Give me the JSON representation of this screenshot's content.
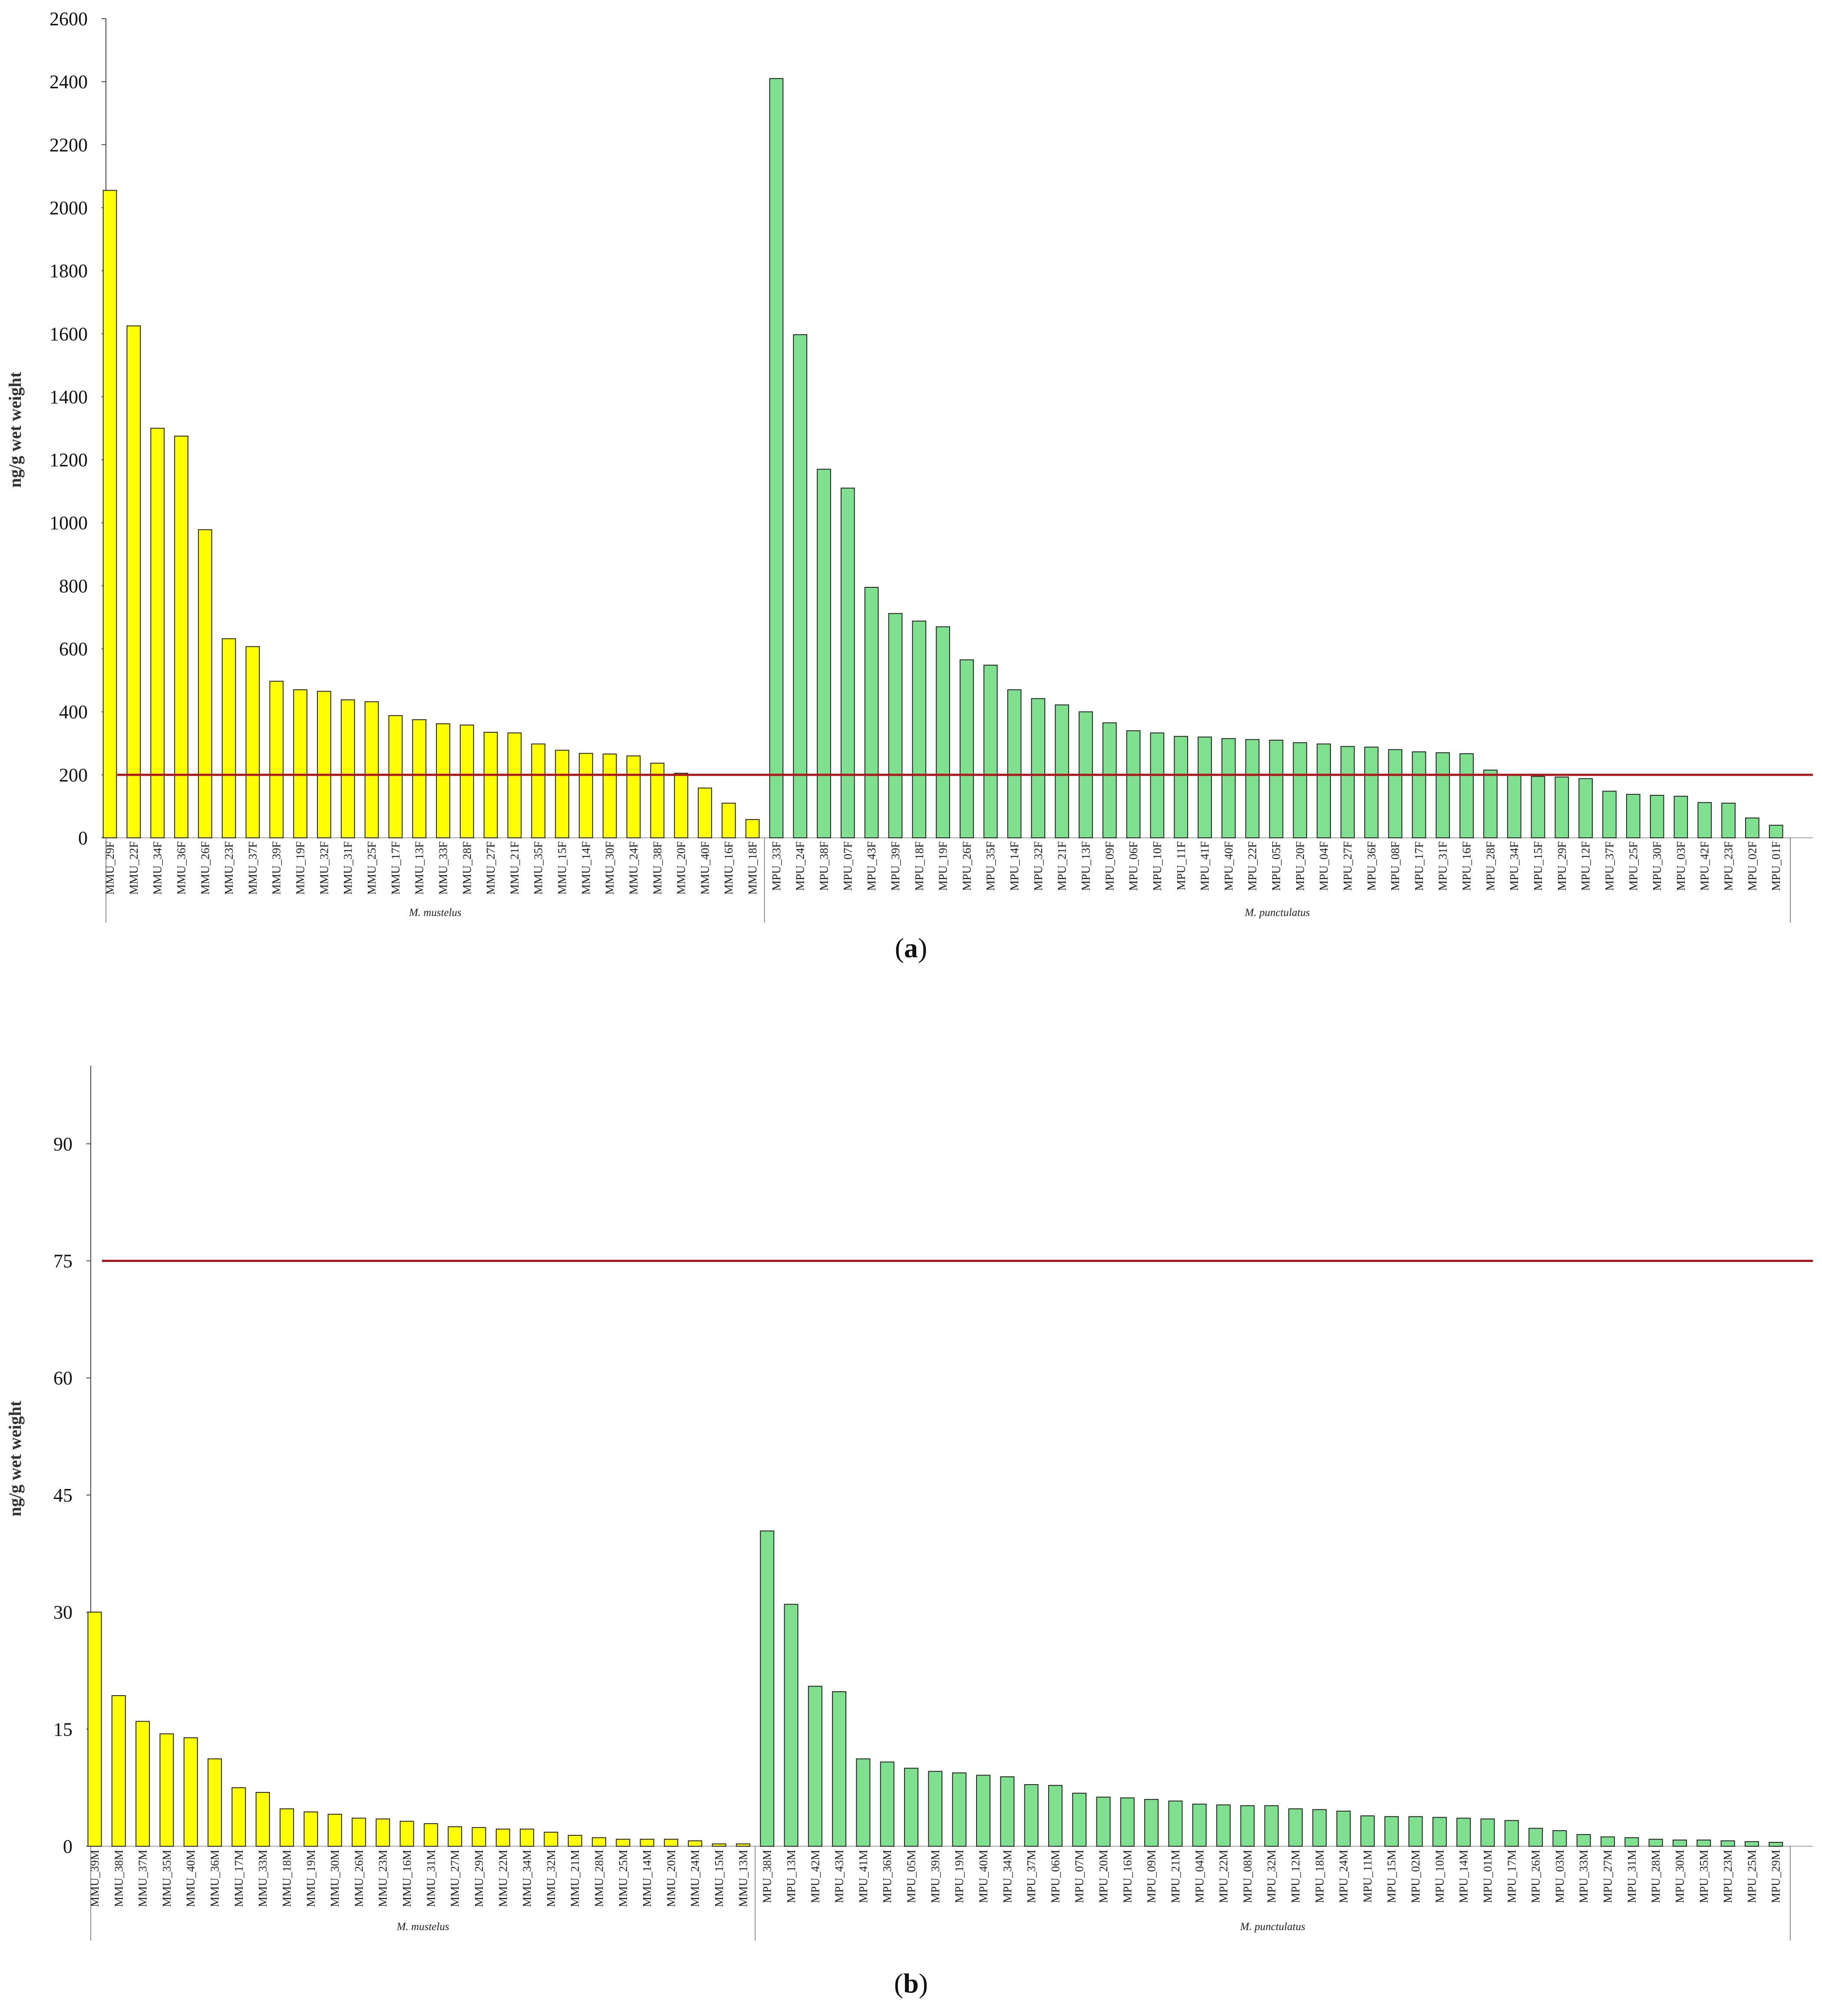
{
  "chart_data": [
    {
      "type": "bar",
      "panel_label": "(a)",
      "panel_letter": "a",
      "ylabel": "ng/g  wet weight",
      "ylim": [
        0,
        2600
      ],
      "yticks": [
        0,
        200,
        400,
        600,
        800,
        1000,
        1200,
        1400,
        1600,
        1800,
        2000,
        2200,
        2400,
        2600
      ],
      "reference_line": 200,
      "groups": [
        {
          "name": "M. mustelus",
          "color": "#ffff00",
          "categories": [
            "MMU_29F",
            "MMU_22F",
            "MMU_34F",
            "MMU_36F",
            "MMU_26F",
            "MMU_23F",
            "MMU_37F",
            "MMU_39F",
            "MMU_19F",
            "MMU_32F",
            "MMU_31F",
            "MMU_25F",
            "MMU_17F",
            "MMU_13F",
            "MMU_33F",
            "MMU_28F",
            "MMU_27F",
            "MMU_21F",
            "MMU_35F",
            "MMU_15F",
            "MMU_14F",
            "MMU_30F",
            "MMU_24F",
            "MMU_38F",
            "MMU_20F",
            "MMU_40F",
            "MMU_16F",
            "MMU_18F"
          ],
          "values": [
            2055,
            1625,
            1300,
            1275,
            978,
            632,
            607,
            497,
            470,
            465,
            438,
            432,
            388,
            375,
            362,
            358,
            335,
            333,
            298,
            278,
            268,
            266,
            260,
            237,
            205,
            158,
            110,
            58
          ]
        },
        {
          "name": "M. punctulatus",
          "color": "#7fe08f",
          "categories": [
            "MPU_33F",
            "MPU_24F",
            "MPU_38F",
            "MPU_07F",
            "MPU_43F",
            "MPU_39F",
            "MPU_18F",
            "MPU_19F",
            "MPU_26F",
            "MPU_35F",
            "MPU_14F",
            "MPU_32F",
            "MPU_21F",
            "MPU_13F",
            "MPU_09F",
            "MPU_06F",
            "MPU_10F",
            "MPU_11F",
            "MPU_41F",
            "MPU_40F",
            "MPU_22F",
            "MPU_05F",
            "MPU_20F",
            "MPU_04F",
            "MPU_27F",
            "MPU_36F",
            "MPU_08F",
            "MPU_17F",
            "MPU_31F",
            "MPU_16F",
            "MPU_28F",
            "MPU_34F",
            "MPU_15F",
            "MPU_29F",
            "MPU_12F",
            "MPU_37F",
            "MPU_25F",
            "MPU_30F",
            "MPU_03F",
            "MPU_42F",
            "MPU_23F",
            "MPU_02F",
            "MPU_01F"
          ],
          "values": [
            2410,
            1597,
            1170,
            1110,
            795,
            712,
            688,
            670,
            565,
            548,
            470,
            442,
            422,
            400,
            365,
            340,
            333,
            322,
            320,
            315,
            312,
            310,
            302,
            298,
            290,
            288,
            280,
            273,
            270,
            267,
            215,
            200,
            195,
            193,
            188,
            148,
            138,
            135,
            132,
            112,
            110,
            63,
            40
          ]
        }
      ]
    },
    {
      "type": "bar",
      "panel_label": "(b)",
      "panel_letter": "b",
      "ylabel": "ng/g wet weight",
      "ylim": [
        0,
        100
      ],
      "yticks": [
        0,
        15,
        30,
        45,
        60,
        75,
        90
      ],
      "reference_line": 75,
      "groups": [
        {
          "name": "M. mustelus",
          "color": "#ffff00",
          "categories": [
            "MMU_39M",
            "MMU_38M",
            "MMU_37M",
            "MMU_35M",
            "MMU_40M",
            "MMU_36M",
            "MMU_17M",
            "MMU_33M",
            "MMU_18M",
            "MMU_19M",
            "MMU_30M",
            "MMU_26M",
            "MMU_23M",
            "MMU_16M",
            "MMU_31M",
            "MMU_27M",
            "MMU_29M",
            "MMU_22M",
            "MMU_34M",
            "MMU_32M",
            "MMU_21M",
            "MMU_28M",
            "MMU_25M",
            "MMU_14M",
            "MMU_20M",
            "MMU_24M",
            "MMU_15M",
            "MMU_13M"
          ],
          "values": [
            30.0,
            19.3,
            16.0,
            14.4,
            13.9,
            11.2,
            7.5,
            6.9,
            4.8,
            4.4,
            4.1,
            3.6,
            3.5,
            3.2,
            2.9,
            2.5,
            2.4,
            2.2,
            2.2,
            1.8,
            1.4,
            1.1,
            0.9,
            0.9,
            0.9,
            0.7,
            0.3,
            0.3
          ]
        },
        {
          "name": "M. punctulatus",
          "color": "#7fe08f",
          "categories": [
            "MPU_38M",
            "MPU_13M",
            "MPU_42M",
            "MPU_43M",
            "MPU_41M",
            "MPU_36M",
            "MPU_05M",
            "MPU_39M",
            "MPU_19M",
            "MPU_40M",
            "MPU_34M",
            "MPU_37M",
            "MPU_06M",
            "MPU_07M",
            "MPU_20M",
            "MPU_16M",
            "MPU_09M",
            "MPU_21M",
            "MPU_04M",
            "MPU_22M",
            "MPU_08M",
            "MPU_32M",
            "MPU_12M",
            "MPU_18M",
            "MPU_24M",
            "MPU_11M",
            "MPU_15M",
            "MPU_02M",
            "MPU_10M",
            "MPU_14M",
            "MPU_01M",
            "MPU_17M",
            "MPU_26M",
            "MPU_03M",
            "MPU_33M",
            "MPU_27M",
            "MPU_31M",
            "MPU_28M",
            "MPU_30M",
            "MPU_35M",
            "MPU_23M",
            "MPU_25M",
            "MPU_29M"
          ],
          "values": [
            40.4,
            31.0,
            20.5,
            19.8,
            11.2,
            10.8,
            10.0,
            9.6,
            9.4,
            9.1,
            8.9,
            7.9,
            7.8,
            6.8,
            6.3,
            6.2,
            6.0,
            5.8,
            5.4,
            5.3,
            5.2,
            5.2,
            4.8,
            4.7,
            4.5,
            3.9,
            3.8,
            3.8,
            3.7,
            3.6,
            3.5,
            3.3,
            2.3,
            2.0,
            1.5,
            1.2,
            1.1,
            0.9,
            0.8,
            0.8,
            0.7,
            0.6,
            0.5
          ]
        }
      ]
    }
  ]
}
